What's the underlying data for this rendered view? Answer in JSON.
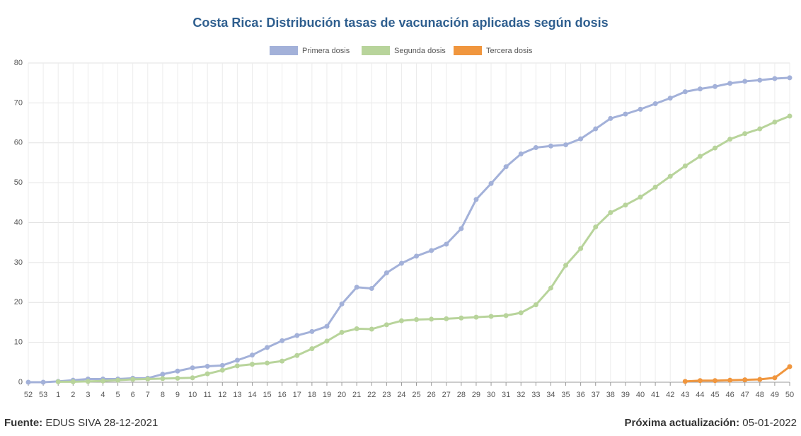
{
  "chart_data": {
    "type": "line",
    "title": "Costa Rica: Distribución tasas de vacunación aplicadas según dosis",
    "categories": [
      "52",
      "53",
      "1",
      "2",
      "3",
      "4",
      "5",
      "6",
      "7",
      "8",
      "9",
      "10",
      "11",
      "12",
      "13",
      "14",
      "15",
      "16",
      "17",
      "18",
      "19",
      "20",
      "21",
      "22",
      "23",
      "24",
      "25",
      "26",
      "27",
      "28",
      "29",
      "30",
      "31",
      "32",
      "33",
      "34",
      "35",
      "36",
      "37",
      "38",
      "39",
      "40",
      "41",
      "42",
      "43",
      "44",
      "45",
      "46",
      "47",
      "48",
      "49",
      "50"
    ],
    "series": [
      {
        "name": "Primera dosis",
        "color": "#a3b1d9",
        "values": [
          0,
          0,
          0.2,
          0.5,
          0.8,
          0.8,
          0.8,
          1,
          1,
          2,
          2.8,
          3.6,
          4,
          4.2,
          5.5,
          6.8,
          8.7,
          10.4,
          11.7,
          12.7,
          14,
          19.6,
          23.8,
          23.5,
          27.4,
          29.8,
          31.6,
          33,
          34.6,
          38.5,
          45.8,
          49.8,
          54,
          57.2,
          58.8,
          59.2,
          59.5,
          61,
          63.5,
          66.1,
          67.2,
          68.4,
          69.8,
          71.2,
          72.8,
          73.5,
          74.1,
          74.9,
          75.4,
          75.7,
          76.1,
          76.3
        ]
      },
      {
        "name": "Segunda dosis",
        "color": "#b8d49b",
        "values": [
          null,
          null,
          0.1,
          0.1,
          0.2,
          0.3,
          0.5,
          0.7,
          0.8,
          0.9,
          1,
          1.1,
          2.1,
          3,
          4.1,
          4.5,
          4.8,
          5.3,
          6.7,
          8.4,
          10.3,
          12.5,
          13.4,
          13.3,
          14.4,
          15.4,
          15.7,
          15.8,
          15.9,
          16.1,
          16.3,
          16.5,
          16.7,
          17.4,
          19.4,
          23.6,
          29.3,
          33.5,
          38.9,
          42.5,
          44.4,
          46.4,
          48.9,
          51.6,
          54.2,
          56.6,
          58.7,
          60.9,
          62.3,
          63.5,
          65.2,
          66.7
        ]
      },
      {
        "name": "Tercera dosis",
        "color": "#f0963e",
        "values": [
          null,
          null,
          null,
          null,
          null,
          null,
          null,
          null,
          null,
          null,
          null,
          null,
          null,
          null,
          null,
          null,
          null,
          null,
          null,
          null,
          null,
          null,
          null,
          null,
          null,
          null,
          null,
          null,
          null,
          null,
          null,
          null,
          null,
          null,
          null,
          null,
          null,
          null,
          null,
          null,
          null,
          null,
          null,
          null,
          0.2,
          0.4,
          0.4,
          0.5,
          0.6,
          0.7,
          1.1,
          3.9
        ]
      }
    ],
    "ylim": [
      0,
      80
    ],
    "yticks": [
      0,
      10,
      20,
      30,
      40,
      50,
      60,
      70,
      80
    ],
    "grid": true,
    "legend": "top"
  },
  "footer": {
    "source_label": "Fuente:",
    "source": "EDUS SIVA 28-12-2021",
    "update_label": "Próxima actualización:",
    "update": "05-01-2022"
  }
}
